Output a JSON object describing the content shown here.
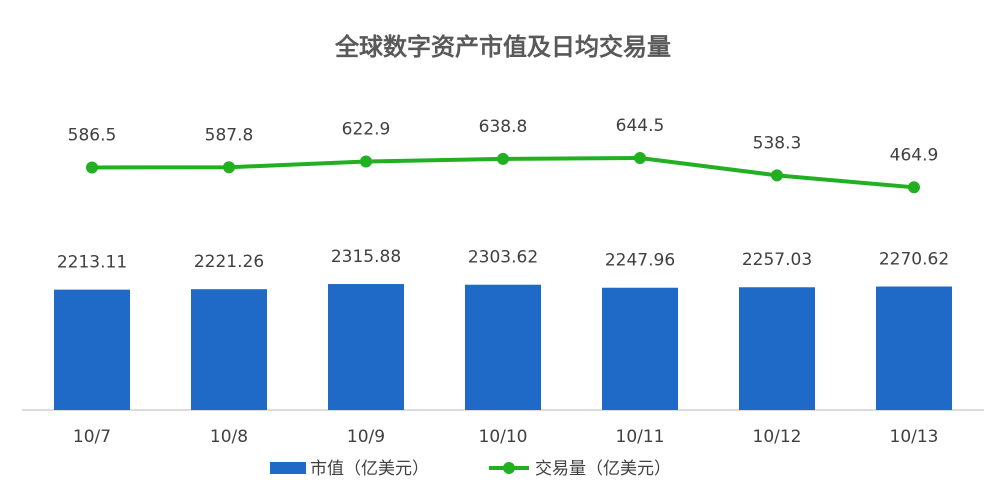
{
  "chart_data": {
    "type": "bar-line",
    "title": "全球数字资产市值及日均交易量",
    "categories": [
      "10/7",
      "10/8",
      "10/9",
      "10/10",
      "10/11",
      "10/12",
      "10/13"
    ],
    "series": [
      {
        "name": "市值（亿美元）",
        "type": "bar",
        "color": "#1f6ac6",
        "values": [
          2213.11,
          2221.26,
          2315.88,
          2303.62,
          2247.96,
          2257.03,
          2270.62
        ]
      },
      {
        "name": "交易量（亿美元）",
        "type": "line",
        "axis": "y2",
        "color": "#22b022",
        "values": [
          586.5,
          587.8,
          622.9,
          638.8,
          644.5,
          538.3,
          464.9
        ]
      }
    ],
    "ylim": [
      0,
      5700
    ],
    "y2lim": [
      -900,
      1000
    ],
    "legend": "bottom"
  }
}
